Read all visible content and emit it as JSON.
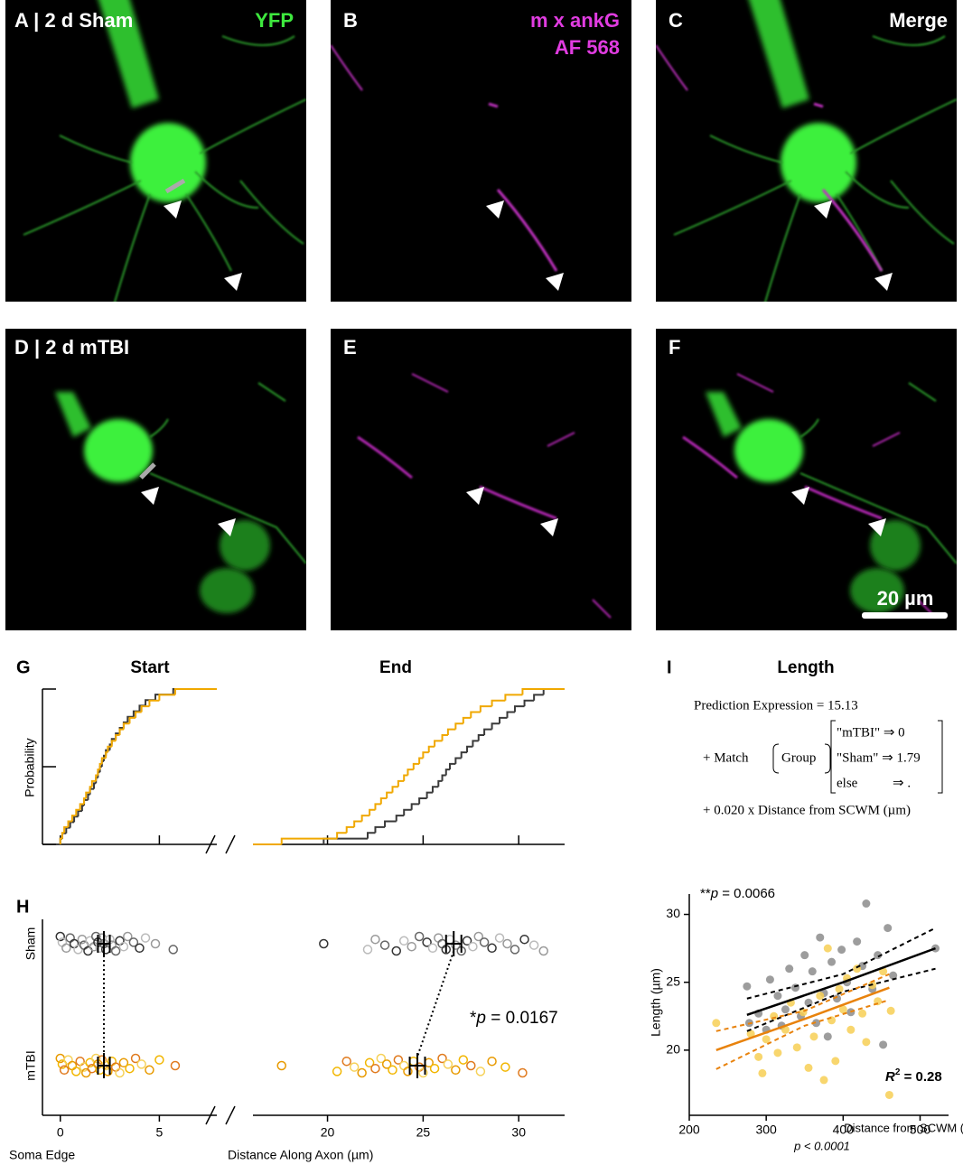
{
  "images": [
    {
      "label": "A |  2 d Sham",
      "channel": "YFP"
    },
    {
      "label": "B",
      "channel": [
        "m x ankG",
        "AF 568"
      ]
    },
    {
      "label": "C",
      "channel": "Merge"
    },
    {
      "label": "D |  2 d mTBI"
    },
    {
      "label": "E"
    },
    {
      "label": "F",
      "scale_bar": "20 µm"
    }
  ],
  "chart_data": [
    {
      "type": "ecdf",
      "panel": "G",
      "title_start": "Start",
      "title_end": "End",
      "ylabel": "Probability",
      "ylim": [
        0,
        1
      ],
      "yticks": [
        0,
        0.5,
        1
      ],
      "xlim": [
        -0.9,
        7.9
      ],
      "xticks": [
        0,
        5
      ],
      "x2lim": [
        16.1,
        32.4
      ],
      "x2ticks": [
        20,
        25,
        30
      ]
    },
    {
      "type": "strip",
      "panel": "H",
      "categories": [
        "Sham",
        "mTBI"
      ],
      "xlim": [
        -0.9,
        7.9
      ],
      "xticks": [
        0,
        5
      ],
      "x2lim": [
        16.1,
        32.4
      ],
      "x2ticks": [
        20,
        25,
        30
      ],
      "xlabel_left": "Soma Edge",
      "xlabel": "Distance Along Axon (µm)",
      "annotation": [
        "*",
        "p",
        " = 0.0167"
      ],
      "series": [
        {
          "color": "#3a3a3a",
          "start": [
            0,
            0.1,
            0.3,
            0.5,
            0.7,
            0.9,
            1.1,
            1.2,
            1.4,
            1.5,
            1.7,
            1.8,
            1.9,
            2.0,
            2.1,
            2.2,
            2.3,
            2.5,
            2.6,
            2.8,
            3.0,
            3.2,
            3.4,
            3.7,
            4.0,
            4.3,
            4.8,
            5.7
          ],
          "end": [
            19.8,
            22.1,
            22.5,
            23.0,
            23.6,
            24.0,
            24.4,
            24.8,
            25.2,
            25.5,
            25.8,
            26.0,
            26.2,
            26.4,
            26.7,
            27.0,
            27.3,
            27.6,
            27.9,
            28.2,
            28.6,
            29.0,
            29.4,
            29.8,
            30.3,
            30.8,
            31.3
          ],
          "start_mean": 2.2,
          "start_sem": 0.3,
          "end_mean": 26.6,
          "end_sem": 0.4
        },
        {
          "color": "#f0a800",
          "start": [
            0,
            0.1,
            0.2,
            0.4,
            0.6,
            0.8,
            1.0,
            1.2,
            1.3,
            1.5,
            1.6,
            1.8,
            1.9,
            2.0,
            2.1,
            2.3,
            2.4,
            2.6,
            2.8,
            3.0,
            3.2,
            3.5,
            3.8,
            4.1,
            4.5,
            5.0,
            5.8
          ],
          "end": [
            17.6,
            20.5,
            21.0,
            21.4,
            21.8,
            22.2,
            22.5,
            22.8,
            23.1,
            23.4,
            23.7,
            24.0,
            24.2,
            24.5,
            24.8,
            25.0,
            25.3,
            25.6,
            26.0,
            26.3,
            26.7,
            27.1,
            27.5,
            28.0,
            28.6,
            29.3,
            30.2
          ],
          "start_mean": 2.2,
          "start_sem": 0.3,
          "end_mean": 24.7,
          "end_sem": 0.4
        }
      ]
    },
    {
      "type": "scatter",
      "panel": "I",
      "title": "Length",
      "formula": {
        "lhs": "Prediction Expression = 15.13",
        "match": "+ Match",
        "group": "Group",
        "cases": [
          "\"mTBI\" ⇒ 0",
          "\"Sham\" ⇒ 1.79",
          "else",
          "⇒ ."
        ],
        "slope": "+ 0.020 x Distance from SCWM (µm)"
      },
      "xlim": [
        200,
        537
      ],
      "xticks": [
        200,
        300,
        400,
        500
      ],
      "ylim": [
        15.2,
        31.5
      ],
      "yticks": [
        20,
        25,
        30
      ],
      "xlabel": "Distance from SCWM (µm)",
      "ylabel": "Length (µm)",
      "note": "p < 0.0001",
      "annotation": [
        "**",
        "p",
        " = 0.0066"
      ],
      "r2": [
        "R",
        "2",
        " = 0.28"
      ],
      "series": [
        {
          "color": "#8c8c8c",
          "line_color": "#000000",
          "x": [
            275,
            278,
            290,
            300,
            305,
            315,
            320,
            325,
            330,
            338,
            345,
            350,
            355,
            360,
            365,
            370,
            375,
            380,
            385,
            392,
            398,
            405,
            410,
            418,
            425,
            430,
            438,
            445,
            452,
            458,
            465,
            520
          ],
          "y": [
            24.7,
            22.0,
            22.7,
            21.5,
            25.2,
            24.0,
            21.8,
            23.0,
            26.0,
            24.6,
            22.5,
            27.0,
            23.5,
            25.8,
            22.0,
            28.3,
            24.2,
            21.0,
            26.5,
            23.8,
            27.4,
            25.0,
            22.8,
            28.0,
            26.2,
            30.8,
            24.5,
            27.0,
            20.4,
            29.0,
            25.5,
            27.5
          ],
          "fit_x": [
            275,
            400,
            520
          ],
          "fit_y": [
            22.6,
            25.0,
            27.5
          ],
          "ci_upper": [
            23.8,
            25.6,
            29.0
          ],
          "ci_lower": [
            21.4,
            24.3,
            26.0
          ]
        },
        {
          "color": "#f7cf55",
          "line_color": "#e8820c",
          "x": [
            235,
            280,
            290,
            295,
            300,
            310,
            315,
            325,
            332,
            340,
            348,
            355,
            362,
            370,
            375,
            380,
            385,
            390,
            395,
            400,
            405,
            410,
            418,
            425,
            430,
            438,
            445,
            452,
            460,
            462
          ],
          "y": [
            22.0,
            21.2,
            19.5,
            18.3,
            20.8,
            22.5,
            19.8,
            21.5,
            23.5,
            20.2,
            22.8,
            18.7,
            21.0,
            24.0,
            17.8,
            27.5,
            22.2,
            19.2,
            24.5,
            23.0,
            25.3,
            21.5,
            26.0,
            22.7,
            20.6,
            24.8,
            23.6,
            25.8,
            16.7,
            22.9
          ],
          "fit_x": [
            235,
            350,
            460
          ],
          "fit_y": [
            20.0,
            22.3,
            24.6
          ],
          "ci_upper": [
            21.4,
            22.9,
            25.6
          ],
          "ci_lower": [
            18.6,
            21.8,
            23.7
          ]
        }
      ]
    }
  ]
}
